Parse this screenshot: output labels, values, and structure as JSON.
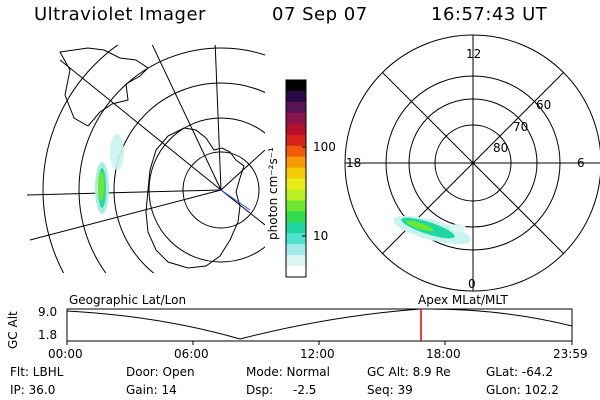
{
  "header": {
    "instrument": "Ultraviolet Imager",
    "date": "07 Sep 07",
    "time": "16:57:43 UT"
  },
  "geo_panel": {
    "label": "Geographic Lat/Lon"
  },
  "colorbar": {
    "unit_label": "photon cm⁻²s⁻¹",
    "ticks": [
      "100",
      "10"
    ],
    "colors": [
      "#000000",
      "#2a0845",
      "#5a1357",
      "#87154b",
      "#b4102e",
      "#d8231a",
      "#ef5a0c",
      "#f89a07",
      "#f3cd0a",
      "#e8ec1a",
      "#b9ef24",
      "#6ee832",
      "#31dc4c",
      "#20d7a3",
      "#52e0cf",
      "#a4ecea",
      "#dcf6f5",
      "#ffffff"
    ]
  },
  "polar_panel": {
    "label": "Apex  MLat/MLT",
    "mlt_labels": [
      "12",
      "18",
      "6",
      "0"
    ],
    "mlat_labels": [
      "60",
      "70",
      "80"
    ]
  },
  "altitude_plot": {
    "ylabel": "GC Alt",
    "yticks": [
      "9.0",
      "1.8"
    ],
    "xticks": [
      "00:00",
      "06:00",
      "12:00",
      "18:00",
      "23:59"
    ],
    "marker_color": "#e00000"
  },
  "info": {
    "filter": "Flt: LBHL",
    "door": "Door: Open",
    "mode": "Mode: Normal",
    "gc_alt": "GC Alt: 8.9 Re",
    "glat": "GLat: -64.2",
    "ip": "IP: 36.0",
    "gain": "Gain: 14",
    "dsp_label": "Dsp:",
    "dsp_value": "-2.5",
    "seq": "Seq: 39",
    "glon": "GLon: 102.2"
  }
}
